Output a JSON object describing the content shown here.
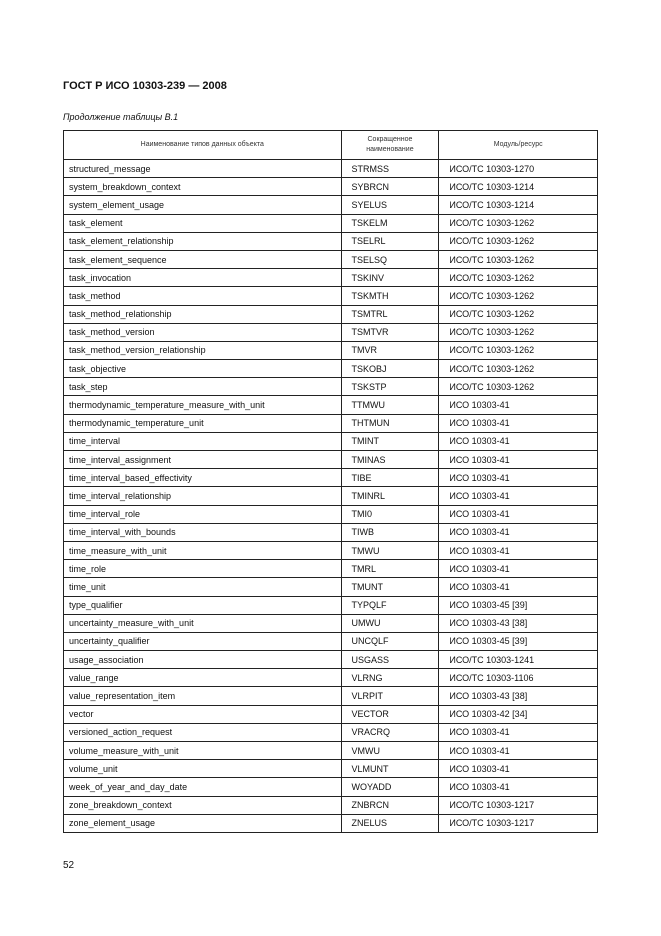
{
  "header": {
    "title": "ГОСТ Р ИСО 10303-239 — 2008",
    "caption": "Продолжение таблицы В.1"
  },
  "table": {
    "columns": [
      "Наименование типов данных объекта",
      "Сокращенное наименование",
      "Модуль/ресурс"
    ],
    "rows": [
      [
        "structured_message",
        "STRMSS",
        "ИСО/ТС 10303-1270"
      ],
      [
        "system_breakdown_context",
        "SYBRCN",
        "ИСО/ТС 10303-1214"
      ],
      [
        "system_element_usage",
        "SYELUS",
        "ИСО/ТС 10303-1214"
      ],
      [
        "task_element",
        "TSKELM",
        "ИСО/ТС 10303-1262"
      ],
      [
        "task_element_relationship",
        "TSELRL",
        "ИСО/ТС 10303-1262"
      ],
      [
        "task_element_sequence",
        "TSELSQ",
        "ИСО/ТС 10303-1262"
      ],
      [
        "task_invocation",
        "TSKINV",
        "ИСО/ТС 10303-1262"
      ],
      [
        "task_method",
        "TSKMTH",
        "ИСО/ТС 10303-1262"
      ],
      [
        "task_method_relationship",
        "TSMTRL",
        "ИСО/ТС 10303-1262"
      ],
      [
        "task_method_version",
        "TSMTVR",
        "ИСО/ТС 10303-1262"
      ],
      [
        "task_method_version_relationship",
        "TMVR",
        "ИСО/ТС 10303-1262"
      ],
      [
        "task_objective",
        "TSKOBJ",
        "ИСО/ТС 10303-1262"
      ],
      [
        "task_step",
        "TSKSTP",
        "ИСО/ТС 10303-1262"
      ],
      [
        "thermodynamic_temperature_measure_with_unit",
        "TTMWU",
        "ИСО 10303-41"
      ],
      [
        "thermodynamic_temperature_unit",
        "THTMUN",
        "ИСО 10303-41"
      ],
      [
        "time_interval",
        "TMINT",
        "ИСО 10303-41"
      ],
      [
        "time_interval_assignment",
        "TMINAS",
        "ИСО 10303-41"
      ],
      [
        "time_interval_based_effectivity",
        "TIBE",
        "ИСО 10303-41"
      ],
      [
        "time_interval_relationship",
        "TMINRL",
        "ИСО 10303-41"
      ],
      [
        "time_interval_role",
        "TMI0",
        "ИСО 10303-41"
      ],
      [
        "time_interval_with_bounds",
        "TIWB",
        "ИСО 10303-41"
      ],
      [
        "time_measure_with_unit",
        "TMWU",
        "ИСО 10303-41"
      ],
      [
        "time_role",
        "TMRL",
        "ИСО 10303-41"
      ],
      [
        "time_unit",
        "TMUNT",
        "ИСО 10303-41"
      ],
      [
        "type_qualifier",
        "TYPQLF",
        "ИСО 10303-45 [39]"
      ],
      [
        "uncertainty_measure_with_unit",
        "UMWU",
        "ИСО 10303-43 [38]"
      ],
      [
        "uncertainty_qualifier",
        "UNCQLF",
        "ИСО 10303-45 [39]"
      ],
      [
        "usage_association",
        "USGASS",
        "ИСО/ТС 10303-1241"
      ],
      [
        "value_range",
        "VLRNG",
        "ИСО/ТС 10303-1106"
      ],
      [
        "value_representation_item",
        "VLRPIT",
        "ИСО 10303-43 [38]"
      ],
      [
        "vector",
        "VECTOR",
        "ИСО 10303-42 [34]"
      ],
      [
        "versioned_action_request",
        "VRACRQ",
        "ИСО 10303-41"
      ],
      [
        "volume_measure_with_unit",
        "VMWU",
        "ИСО 10303-41"
      ],
      [
        "volume_unit",
        "VLMUNT",
        "ИСО 10303-41"
      ],
      [
        "week_of_year_and_day_date",
        "WOYADD",
        "ИСО 10303-41"
      ],
      [
        "zone_breakdown_context",
        "ZNBRCN",
        "ИСО/ТС 10303-1217"
      ],
      [
        "zone_element_usage",
        "ZNELUS",
        "ИСО/ТС 10303-1217"
      ]
    ]
  },
  "footer": {
    "page_number": "52"
  }
}
